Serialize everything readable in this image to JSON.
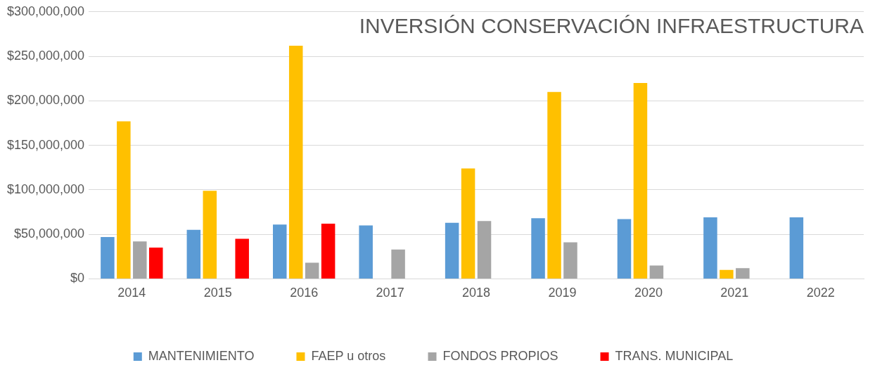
{
  "chart_data": {
    "type": "bar",
    "title": "INVERSIÓN CONSERVACIÓN INFRAESTRUCTURA",
    "categories": [
      "2014",
      "2015",
      "2016",
      "2017",
      "2018",
      "2019",
      "2020",
      "2021",
      "2022"
    ],
    "series": [
      {
        "name": "MANTENIMIENTO",
        "color": "#5b9bd5",
        "values": [
          47000000,
          55000000,
          61000000,
          60000000,
          63000000,
          68000000,
          67000000,
          69000000,
          69000000
        ]
      },
      {
        "name": "FAEP u otros",
        "color": "#ffc000",
        "values": [
          177000000,
          99000000,
          262000000,
          null,
          124000000,
          210000000,
          220000000,
          10000000,
          null
        ]
      },
      {
        "name": "FONDOS PROPIOS",
        "color": "#a5a5a5",
        "values": [
          42000000,
          null,
          18000000,
          33000000,
          65000000,
          41000000,
          15000000,
          12000000,
          null
        ]
      },
      {
        "name": "TRANS. MUNICIPAL",
        "color": "#ff0000",
        "values": [
          35000000,
          45000000,
          62000000,
          null,
          null,
          null,
          null,
          null,
          null
        ]
      }
    ],
    "ylim": [
      0,
      300000000
    ],
    "yticks": [
      {
        "value": 0,
        "label": "$0"
      },
      {
        "value": 50000000,
        "label": "$50,000,000"
      },
      {
        "value": 100000000,
        "label": "$100,000,000"
      },
      {
        "value": 150000000,
        "label": "$150,000,000"
      },
      {
        "value": 200000000,
        "label": "$200,000,000"
      },
      {
        "value": 250000000,
        "label": "$250,000,000"
      },
      {
        "value": 300000000,
        "label": "$300,000,000"
      }
    ],
    "grid": "y",
    "legend": "bottom"
  }
}
